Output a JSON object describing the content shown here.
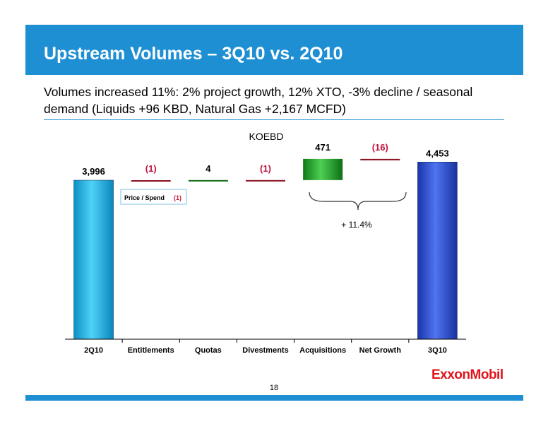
{
  "slide": {
    "title": "Upstream Volumes – 3Q10 vs. 2Q10",
    "subtitle": "Volumes increased 11%: 2% project growth, 12% XTO, -3% decline / seasonal demand (Liquids +96 KBD, Natural Gas +2,167 MCFD)",
    "page_number": "18",
    "logo": "ExxonMobil"
  },
  "colors": {
    "title_bar": "#1f8fd4",
    "negative_label": "#c0143c",
    "start_bar": "#12b0e6",
    "end_bar": "#2546c8",
    "acquisition_bar": "#1e9a2a",
    "logo": "#e1141b"
  },
  "chart_data": {
    "type": "bar",
    "subtype": "waterfall",
    "ylabel": "KOEBD",
    "categories": [
      "2Q10",
      "Entitlements",
      "Quotas",
      "Divestments",
      "Acquisitions",
      "Net Growth",
      "3Q10"
    ],
    "values": [
      3996,
      -1,
      4,
      -1,
      471,
      -16,
      4453
    ],
    "value_labels": [
      "3,996",
      "(1)",
      "4",
      "(1)",
      "471",
      "(16)",
      "4,453"
    ],
    "kinds": [
      "total",
      "delta",
      "delta",
      "delta",
      "delta",
      "delta",
      "total"
    ],
    "annotations": {
      "price_spend_label": "Price / Spend",
      "price_spend_value": "(1)",
      "growth_brace_text": "+ 11.4%"
    }
  }
}
